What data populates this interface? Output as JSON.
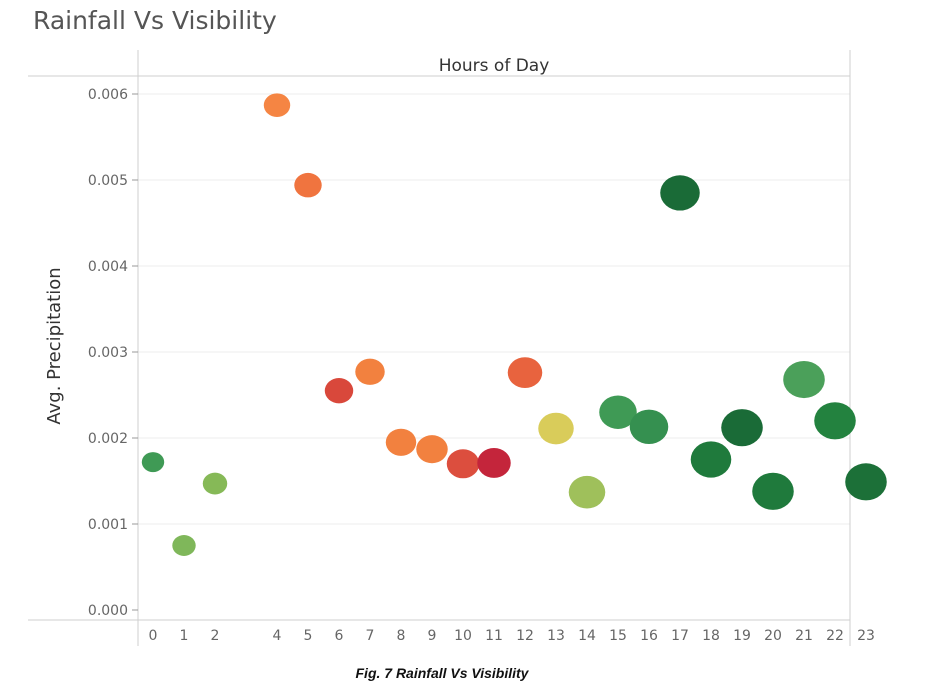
{
  "chart_data": {
    "type": "scatter",
    "title": "Rainfall Vs Visibility",
    "header": "Hours of Day",
    "ylabel": "Avg. Precipitation",
    "ylim": [
      0,
      0.0065
    ],
    "yticks": [
      "0.000",
      "0.001",
      "0.002",
      "0.003",
      "0.004",
      "0.005",
      "0.006"
    ],
    "x": [
      0,
      1,
      2,
      4,
      5,
      6,
      7,
      8,
      9,
      10,
      11,
      12,
      13,
      14,
      15,
      16,
      17,
      18,
      19,
      20,
      21,
      22,
      23
    ],
    "y": [
      0.00172,
      0.00075,
      0.00147,
      0.00587,
      0.00494,
      0.00255,
      0.00277,
      0.00195,
      0.00187,
      0.0017,
      0.00171,
      0.00276,
      0.00211,
      0.00137,
      0.0023,
      0.00213,
      0.00485,
      0.00175,
      0.00212,
      0.00138,
      0.00268,
      0.0022,
      0.00149
    ],
    "colors": [
      "#3f9a55",
      "#7fb75a",
      "#86b957",
      "#f58543",
      "#f0743f",
      "#d9483b",
      "#f2813f",
      "#f2813f",
      "#f2813f",
      "#dc4e3e",
      "#c4253b",
      "#e8633e",
      "#d9cc5a",
      "#9fc05b",
      "#3f9a55",
      "#359050",
      "#1a6b37",
      "#1f7a3c",
      "#1a6b37",
      "#1f7a3c",
      "#4ba05a",
      "#23823f",
      "#1c7038"
    ],
    "grid": true,
    "legend": "none"
  },
  "caption": "Fig. 7 Rainfall Vs Visibility"
}
